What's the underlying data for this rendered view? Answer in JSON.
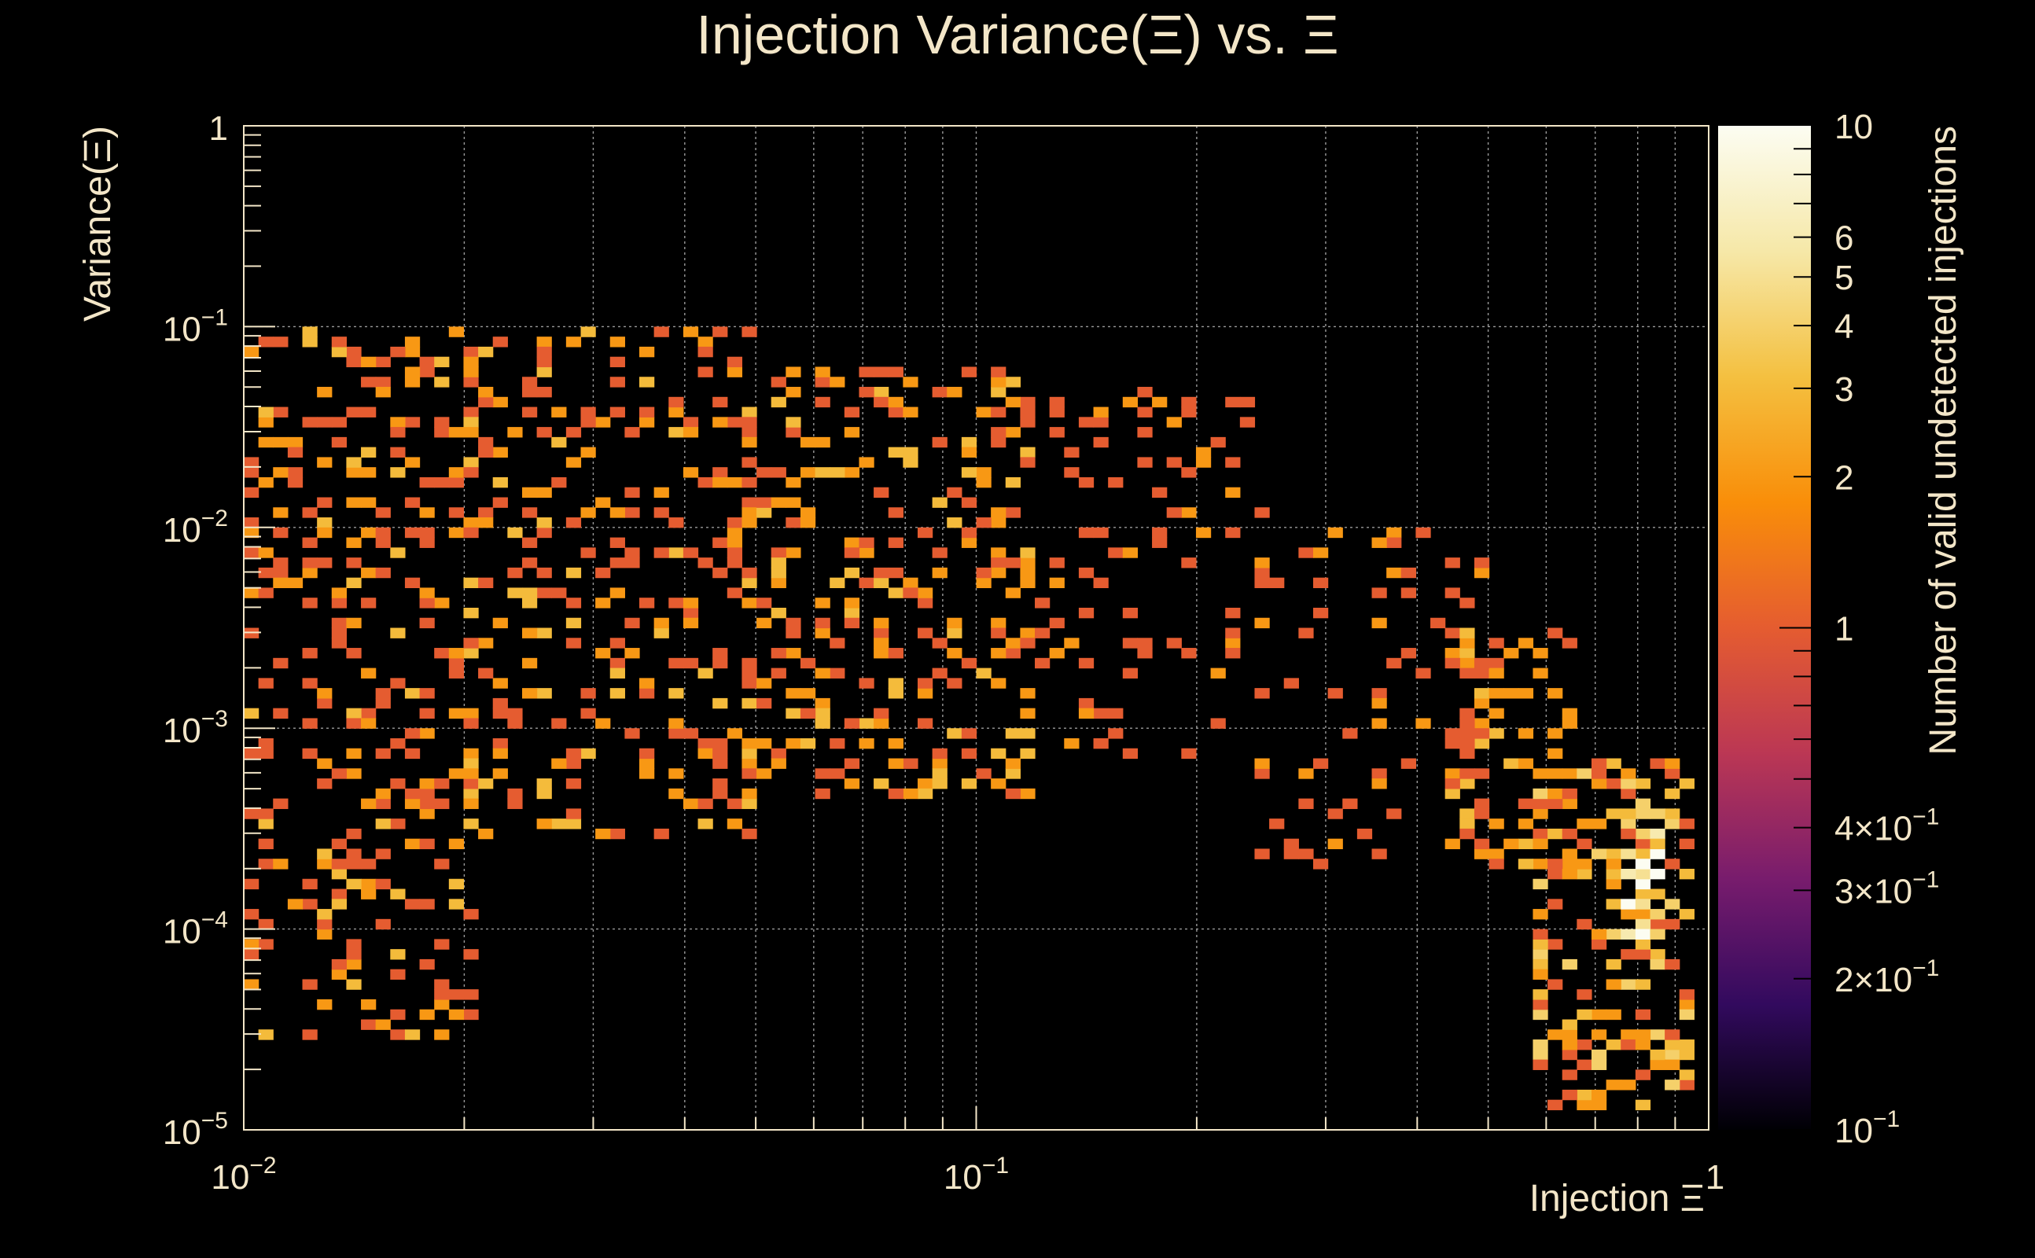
{
  "chart_data": {
    "type": "heatmap",
    "title": "Injection Variance(Ξ) vs. Ξ",
    "xlabel": "Injection Ξ",
    "ylabel": "Variance(Ξ)",
    "zlabel": "Number of valid undetected injections",
    "x_scale": "log",
    "y_scale": "log",
    "z_scale": "log",
    "xlim": [
      0.01,
      1
    ],
    "ylim": [
      1e-05,
      1
    ],
    "zlim": [
      0.1,
      10
    ],
    "grid": true,
    "x_ticks": [
      {
        "value": 0.01,
        "base": "10",
        "exp": "−2"
      },
      {
        "value": 0.1,
        "base": "10",
        "exp": "−1"
      },
      {
        "value": 1,
        "base": "1",
        "exp": ""
      }
    ],
    "y_ticks": [
      {
        "value": 1,
        "base": "1",
        "exp": ""
      },
      {
        "value": 0.1,
        "base": "10",
        "exp": "−1"
      },
      {
        "value": 0.01,
        "base": "10",
        "exp": "−2"
      },
      {
        "value": 0.001,
        "base": "10",
        "exp": "−3"
      },
      {
        "value": 0.0001,
        "base": "10",
        "exp": "−4"
      },
      {
        "value": 1e-05,
        "base": "10",
        "exp": "−5"
      }
    ],
    "z_ticks": [
      {
        "value": 10,
        "label": "10"
      },
      {
        "value": 6,
        "label": "6"
      },
      {
        "value": 5,
        "label": "5"
      },
      {
        "value": 4,
        "label": "4"
      },
      {
        "value": 3,
        "label": "3"
      },
      {
        "value": 2,
        "label": "2"
      },
      {
        "value": 1,
        "label": "1"
      },
      {
        "value": 0.4,
        "label": "4×10",
        "exp": "−1"
      },
      {
        "value": 0.3,
        "label": "3×10",
        "exp": "−1"
      },
      {
        "value": 0.2,
        "label": "2×10",
        "exp": "−1"
      },
      {
        "value": 0.1,
        "label": "10",
        "exp": "−1"
      }
    ],
    "colormap": [
      "#000004",
      "#320a5e",
      "#781c6d",
      "#bb3754",
      "#e55c30",
      "#f98e09",
      "#f4c040",
      "#f6e8a8",
      "#fcfdf2"
    ],
    "bins": {
      "nx": 100,
      "ny": 100
    },
    "density_regions": [
      {
        "x_range": [
          0.01,
          0.02
        ],
        "y_range": [
          3e-05,
          0.1
        ],
        "count": 290,
        "values": [
          1,
          1,
          1,
          1,
          2,
          2,
          3
        ]
      },
      {
        "x_range": [
          0.02,
          0.05
        ],
        "y_range": [
          0.0003,
          0.1
        ],
        "count": 260,
        "values": [
          1,
          1,
          1,
          1,
          2,
          2,
          3
        ]
      },
      {
        "x_range": [
          0.05,
          0.12
        ],
        "y_range": [
          0.0005,
          0.06
        ],
        "count": 260,
        "values": [
          1,
          1,
          1,
          2,
          2,
          3
        ]
      },
      {
        "x_range": [
          0.12,
          0.25
        ],
        "y_range": [
          0.0007,
          0.05
        ],
        "count": 90,
        "values": [
          1,
          1,
          1,
          2
        ]
      },
      {
        "x_range": [
          0.25,
          0.5
        ],
        "y_range": [
          0.0002,
          0.01
        ],
        "count": 70,
        "values": [
          1,
          1,
          1,
          2
        ]
      },
      {
        "x_range": [
          0.45,
          0.65
        ],
        "y_range": [
          0.0002,
          0.003
        ],
        "count": 80,
        "values": [
          1,
          1,
          2,
          2,
          3
        ]
      },
      {
        "x_range": [
          0.6,
          0.92
        ],
        "y_range": [
          1.4e-05,
          0.0007
        ],
        "count": 170,
        "values": [
          1,
          1,
          2,
          2,
          3,
          4
        ]
      },
      {
        "x_range": [
          0.77,
          0.84
        ],
        "y_range": [
          9e-05,
          0.0004
        ],
        "count": 24,
        "values": [
          3,
          4,
          5,
          6,
          10
        ]
      }
    ]
  }
}
